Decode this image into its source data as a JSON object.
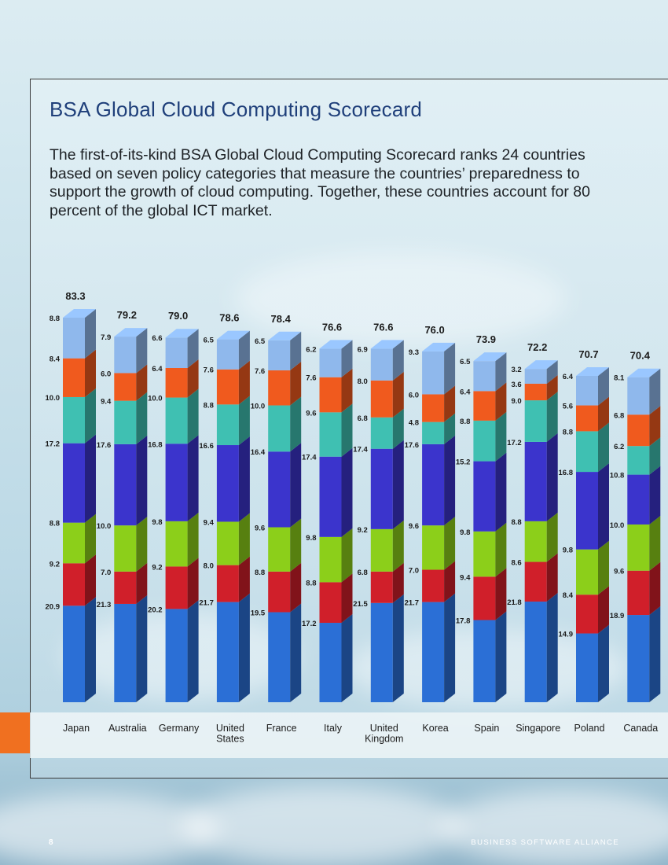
{
  "page": {
    "title": "BSA Global Cloud Computing Scorecard",
    "intro": "The first-of-its-kind BSA Global Cloud Computing Scorecard ranks 24 countries based on seven policy categories that measure the countries’ preparedness to support the growth of cloud computing. Together, these countries account for 80 percent of the global ICT market.",
    "page_number": "8",
    "footer": "BUSINESS SOFTWARE ALLIANCE"
  },
  "chart_data": {
    "type": "bar",
    "stacked": true,
    "categories": [
      "Japan",
      "Australia",
      "Germany",
      "United States",
      "France",
      "Italy",
      "United Kingdom",
      "Korea",
      "Spain",
      "Singapore",
      "Poland",
      "Canada"
    ],
    "totals": [
      83.3,
      79.2,
      79.0,
      78.6,
      78.4,
      76.6,
      76.6,
      76.0,
      73.9,
      72.2,
      70.7,
      70.4
    ],
    "segment_order_bottom_to_top": [
      "blue",
      "red",
      "green",
      "purple",
      "teal",
      "orange",
      "light-blue"
    ],
    "colors": [
      "#2b6fd6",
      "#d01f2a",
      "#8ccf1a",
      "#3b34cc",
      "#3fc0b2",
      "#f05a1e",
      "#8fb8ec"
    ],
    "series": [
      {
        "values": [
          20.9,
          21.3,
          20.2,
          21.7,
          19.5,
          17.2,
          21.5,
          21.7,
          17.8,
          21.8,
          14.9,
          18.9
        ]
      },
      {
        "values": [
          9.2,
          7.0,
          9.2,
          8.0,
          8.8,
          8.8,
          6.8,
          7.0,
          9.4,
          8.6,
          8.4,
          9.6
        ]
      },
      {
        "values": [
          8.8,
          10.0,
          9.8,
          9.4,
          9.6,
          9.8,
          9.2,
          9.6,
          9.8,
          8.8,
          9.8,
          10.0
        ]
      },
      {
        "values": [
          17.2,
          17.6,
          16.8,
          16.6,
          16.4,
          17.4,
          17.4,
          17.6,
          15.2,
          17.2,
          16.8,
          10.8
        ]
      },
      {
        "values": [
          10.0,
          9.4,
          10.0,
          8.8,
          10.0,
          9.6,
          6.8,
          4.8,
          8.8,
          9.0,
          8.8,
          6.2
        ]
      },
      {
        "values": [
          8.4,
          6.0,
          6.4,
          7.6,
          7.6,
          7.6,
          8.0,
          6.0,
          6.4,
          3.6,
          5.6,
          6.8
        ]
      },
      {
        "values": [
          8.8,
          7.9,
          6.6,
          6.5,
          6.5,
          6.2,
          6.9,
          9.3,
          6.5,
          3.2,
          6.4,
          8.1
        ]
      }
    ],
    "ylim": [
      0,
      83.3
    ],
    "grid": false,
    "legend": "none",
    "xlabel": "",
    "ylabel": ""
  }
}
